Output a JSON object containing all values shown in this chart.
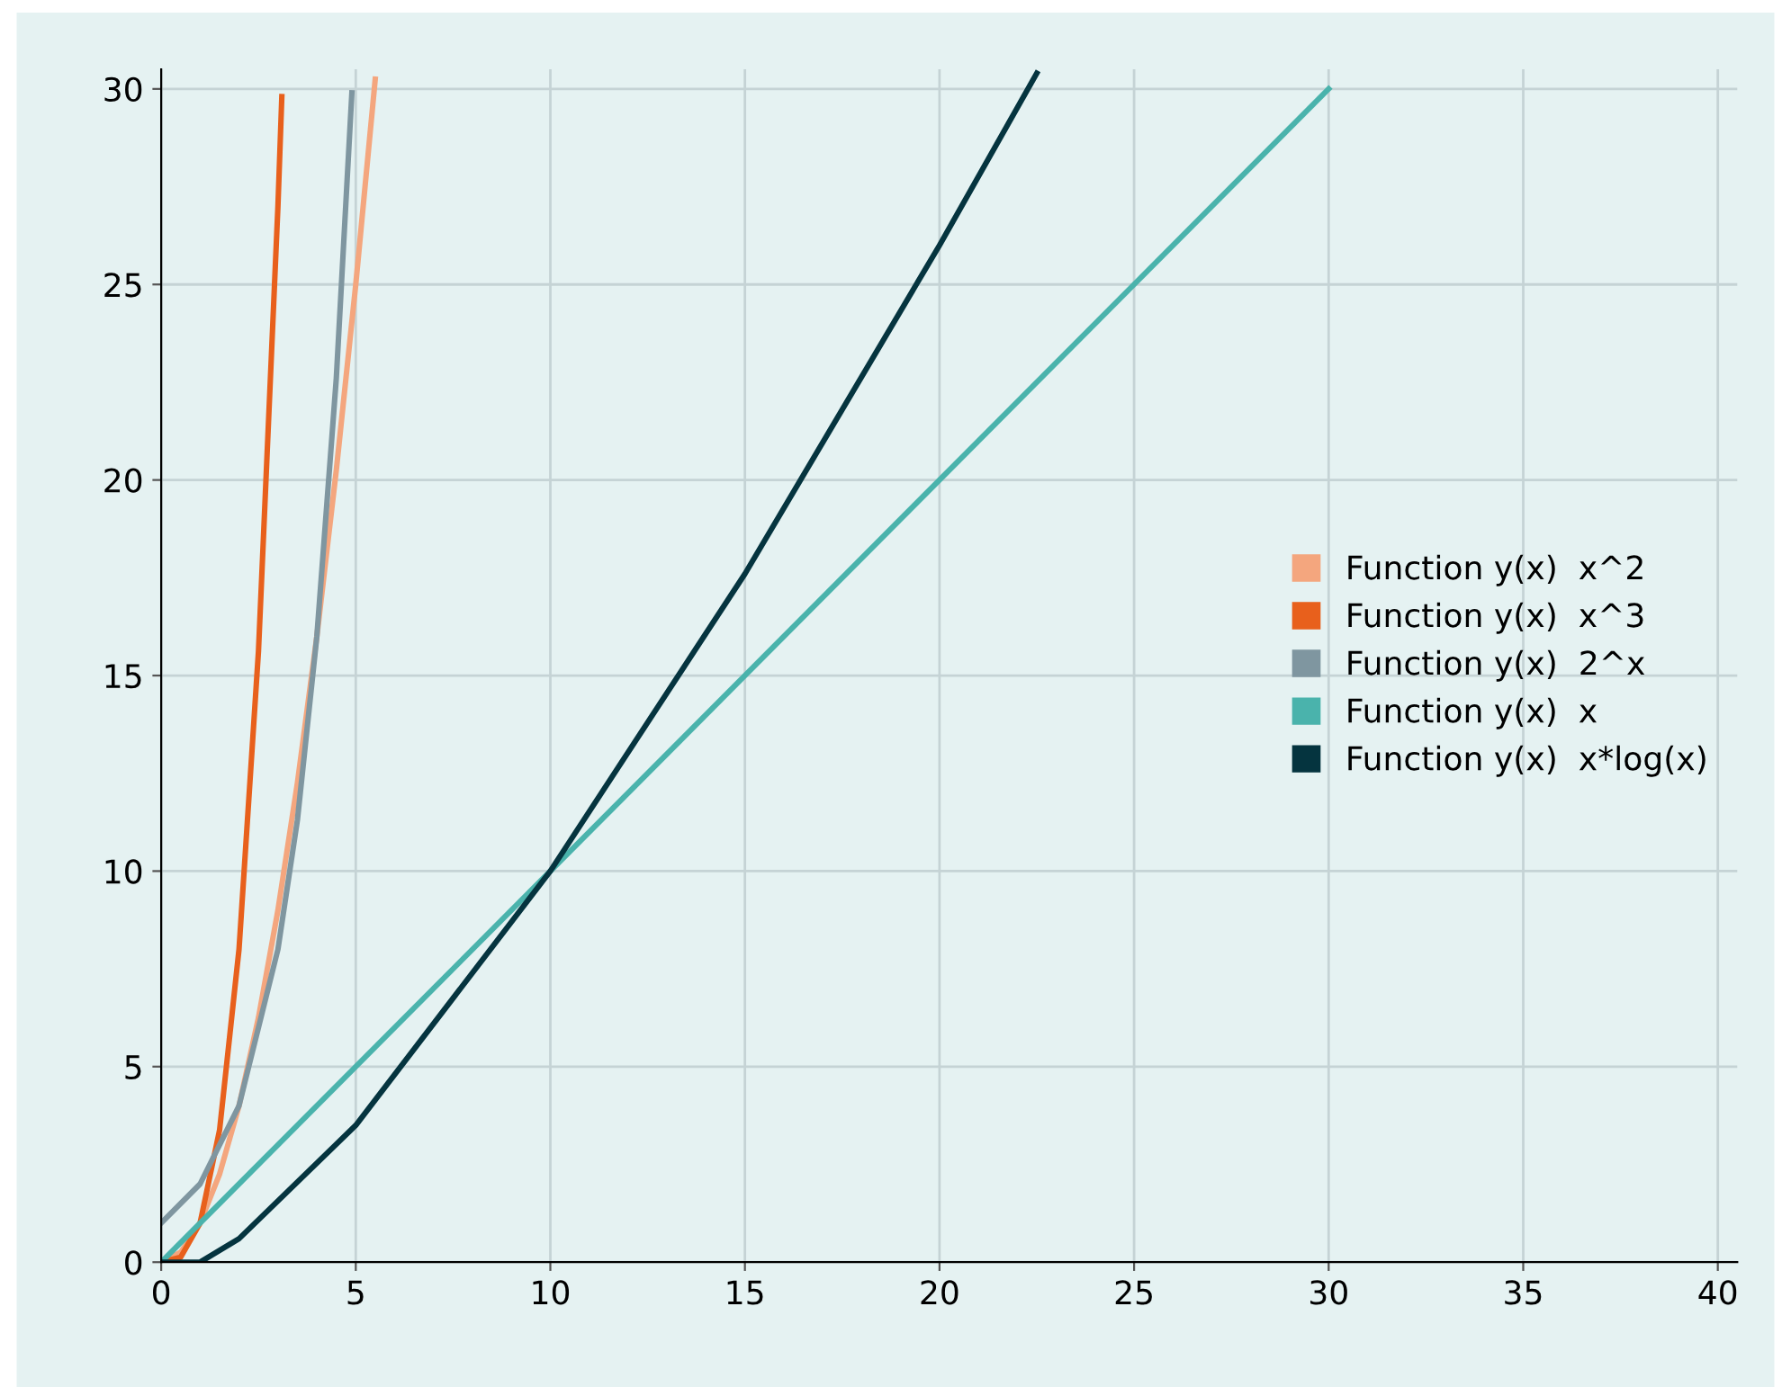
{
  "chart_data": {
    "type": "line",
    "series": [
      {
        "name": "Function y(x)  x^2",
        "color": "#f4a67e",
        "x": [
          0,
          0.5,
          1,
          1.5,
          2,
          2.5,
          3,
          3.5,
          4,
          4.5,
          5,
          5.5
        ],
        "values": [
          0,
          0.25,
          1,
          2.25,
          4,
          6.25,
          9,
          12.25,
          16,
          20.25,
          25,
          30.25
        ]
      },
      {
        "name": "Function y(x)  x^3",
        "color": "#e8601c",
        "x": [
          0,
          0.5,
          1,
          1.5,
          2,
          2.5,
          3,
          3.1
        ],
        "values": [
          0,
          0.125,
          1,
          3.375,
          8,
          15.625,
          27,
          29.8
        ]
      },
      {
        "name": "Function y(x)  2^x",
        "color": "#7f96a0",
        "x": [
          0,
          1,
          2,
          3,
          3.5,
          4,
          4.5,
          4.9
        ],
        "values": [
          1,
          2,
          4,
          8,
          11.3,
          16,
          22.6,
          29.9
        ]
      },
      {
        "name": "Function y(x)  x",
        "color": "#4ab3ac",
        "x": [
          0,
          30
        ],
        "values": [
          0,
          30
        ]
      },
      {
        "name": "Function y(x)  x*log(x)",
        "color": "#05343f",
        "x": [
          0,
          1,
          2,
          5,
          10,
          15,
          20,
          22.5
        ],
        "values": [
          0,
          0,
          0.6,
          3.5,
          10,
          17.6,
          26,
          30.4
        ]
      }
    ],
    "xlim": [
      0,
      40.5
    ],
    "ylim": [
      0,
      30.5
    ],
    "xticks": [
      0,
      5,
      10,
      15,
      20,
      25,
      30,
      35,
      40
    ],
    "yticks": [
      0,
      5,
      10,
      15,
      20,
      25,
      30
    ],
    "grid": true,
    "legend": "right",
    "marker": "none",
    "line_style": "solid"
  }
}
